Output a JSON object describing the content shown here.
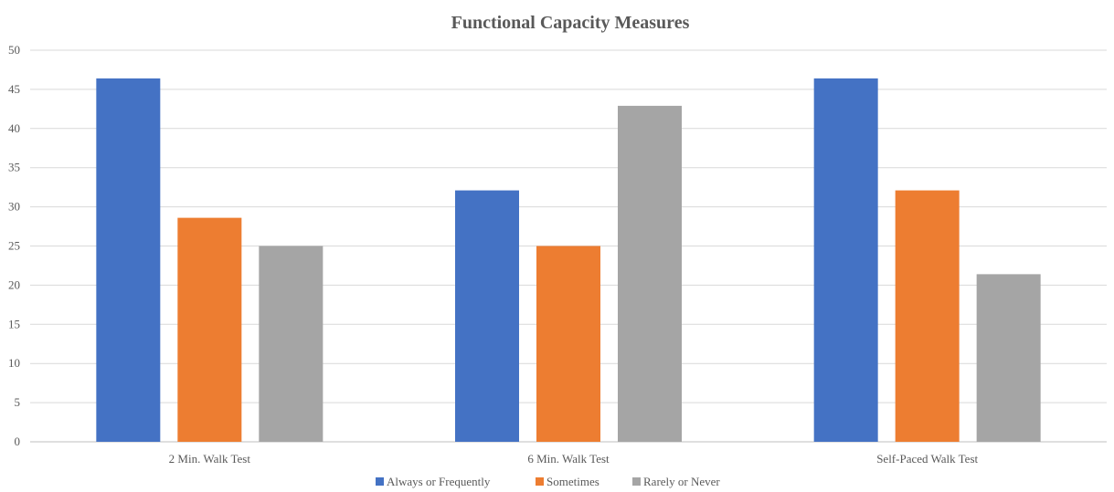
{
  "chart_data": {
    "type": "bar",
    "title": "Functional Capacity Measures",
    "xlabel": "",
    "ylabel": "",
    "ylim": [
      0,
      50
    ],
    "yticks": [
      0,
      5,
      10,
      15,
      20,
      25,
      30,
      35,
      40,
      45,
      50
    ],
    "grid": true,
    "legend_position": "bottom",
    "categories": [
      "2 Min. Walk Test",
      "6 Min. Walk Test",
      "Self-Paced Walk Test"
    ],
    "series": [
      {
        "name": "Always or Frequently",
        "color": "#4472C4",
        "values": [
          46.4,
          32.1,
          46.4
        ]
      },
      {
        "name": "Sometimes",
        "color": "#ED7D31",
        "values": [
          28.6,
          25.0,
          32.1
        ]
      },
      {
        "name": "Rarely or Never",
        "color": "#A5A5A5",
        "values": [
          25.0,
          42.9,
          21.4
        ]
      }
    ]
  }
}
